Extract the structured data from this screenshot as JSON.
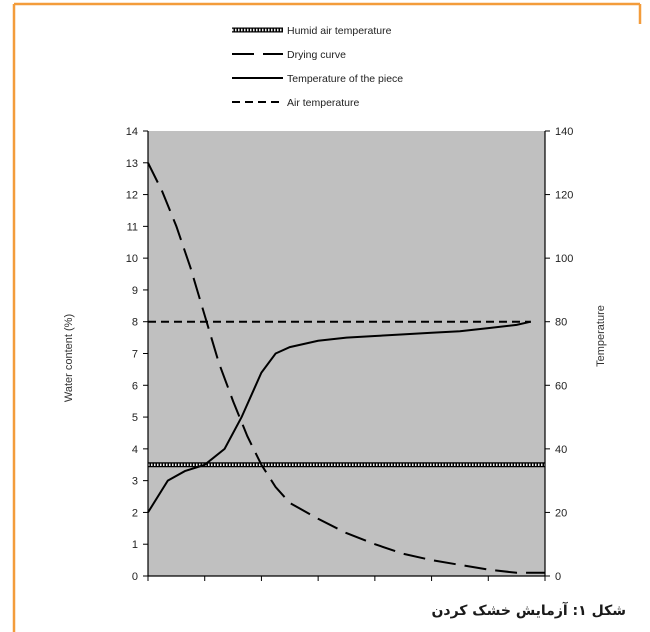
{
  "caption": "شکل ۱: آزمایش خشک کردن",
  "colors": {
    "frame": "#f39c3b",
    "plot_bg": "#c0c0c0",
    "line": "#000000"
  },
  "chart_data": {
    "type": "line",
    "title": "",
    "xlabel": "",
    "ylabel": "Water content (%)",
    "ylabel_right": "Temperature",
    "ylim": [
      0,
      14
    ],
    "ylim_right": [
      0,
      140
    ],
    "yticks": [
      0,
      1,
      2,
      3,
      4,
      5,
      6,
      7,
      8,
      9,
      10,
      11,
      12,
      13,
      14
    ],
    "yticks_right": [
      0,
      20,
      40,
      60,
      80,
      100,
      120,
      140
    ],
    "xlim": [
      0,
      14
    ],
    "x_ticks_unlabeled": [
      0,
      2,
      4,
      6,
      8,
      10,
      12,
      14
    ],
    "grid": false,
    "legend_position": "top",
    "series": [
      {
        "name": "Humid air temperature",
        "style": "dotted-double",
        "axis": "right",
        "x": [
          0,
          14
        ],
        "y": [
          35,
          35
        ]
      },
      {
        "name": "Drying curve",
        "style": "long-dash",
        "axis": "left",
        "x": [
          0,
          0.5,
          1,
          1.5,
          2,
          2.5,
          3,
          3.5,
          4,
          4.5,
          5,
          6,
          7,
          8,
          9,
          10,
          11,
          12,
          13,
          14
        ],
        "y": [
          13,
          12.1,
          11,
          9.7,
          8.2,
          6.7,
          5.5,
          4.4,
          3.5,
          2.8,
          2.3,
          1.8,
          1.35,
          1.0,
          0.7,
          0.5,
          0.35,
          0.2,
          0.1,
          0.1
        ]
      },
      {
        "name": "Temperature of the piece",
        "style": "solid",
        "axis": "right",
        "x": [
          0,
          0.7,
          1.3,
          2,
          2.7,
          3.3,
          4,
          4.5,
          5,
          6,
          7,
          8,
          9,
          10,
          11,
          12,
          13,
          13.5
        ],
        "y": [
          20,
          30,
          33,
          35,
          40,
          50,
          64,
          70,
          72,
          74,
          75,
          75.5,
          76,
          76.5,
          77,
          78,
          79,
          80
        ]
      },
      {
        "name": "Air temperature",
        "style": "short-dash",
        "axis": "right",
        "x": [
          0,
          13.5
        ],
        "y": [
          80,
          80
        ]
      }
    ]
  }
}
